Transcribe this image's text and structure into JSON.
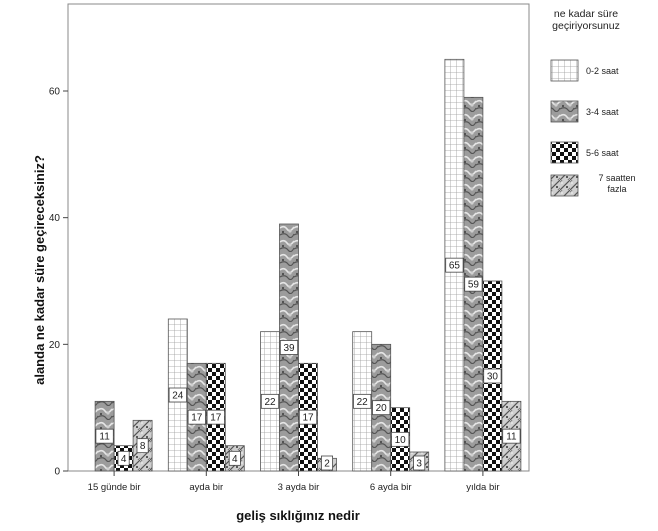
{
  "chart_data": {
    "type": "bar",
    "title": "",
    "xlabel": "geliş sıklığınız nedir",
    "ylabel": "alanda ne kadar süre geçireceksiniz?",
    "categories": [
      "15 günde bir",
      "ayda bir",
      "3 ayda bir",
      "6 ayda bir",
      "yılda bir"
    ],
    "ylim": [
      0,
      70
    ],
    "yticks": [
      0,
      20,
      40,
      60
    ],
    "grid": false,
    "legend": {
      "title_lines": [
        "ne kadar süre",
        "geçiriyorsunuz"
      ],
      "placement": "right"
    },
    "series": [
      {
        "name": "0-2 saat",
        "values": [
          0,
          24,
          22,
          22,
          65
        ],
        "labels": [
          "",
          "24",
          "22",
          "22",
          "65"
        ],
        "pattern": "grid"
      },
      {
        "name": "3-4 saat",
        "values": [
          11,
          17,
          39,
          20,
          59
        ],
        "labels": [
          "11",
          "17",
          "39",
          "20",
          "59"
        ],
        "pattern": "marble"
      },
      {
        "name": "5-6 saat",
        "values": [
          4,
          17,
          17,
          10,
          30
        ],
        "labels": [
          "4",
          "17",
          "17",
          "10",
          "30"
        ],
        "pattern": "checker"
      },
      {
        "name": "7 saatten fazla",
        "name_lines": [
          "7 saatten",
          "fazla"
        ],
        "values": [
          8,
          4,
          2,
          3,
          11
        ],
        "labels": [
          "8",
          "4",
          "2",
          "3",
          "11"
        ],
        "pattern": "rough"
      }
    ]
  }
}
